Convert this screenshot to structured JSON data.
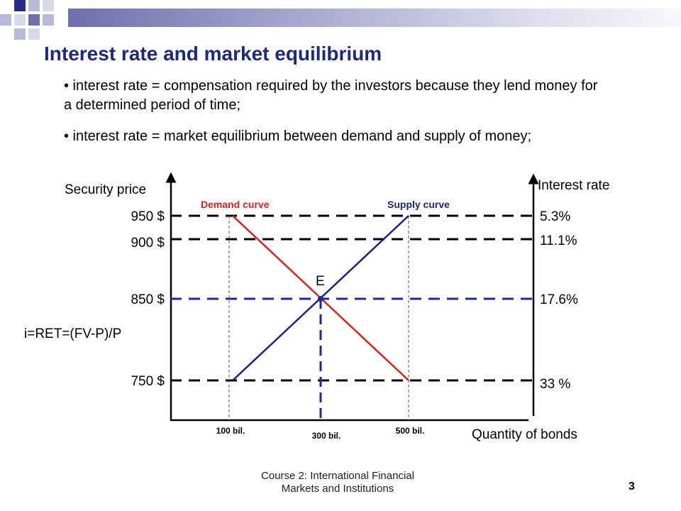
{
  "slide": {
    "title": "Interest rate and market equilibrium",
    "bullets": [
      "• interest rate = compensation required by the investors because they lend money for a determined period of time;",
      "• interest rate = market equilibrium between demand and supply of money;"
    ],
    "footer_line1": "Course 2: International Financial",
    "footer_line2": "Markets and Institutions",
    "page_number": "3"
  },
  "diagram": {
    "left_axis_label": "Security price",
    "right_axis_label": "Interest rate",
    "x_axis_label": "Quantity of bonds",
    "formula": "i=RET=(FV-P)/P",
    "equilibrium_label": "E",
    "demand_label": "Demand curve",
    "supply_label": "Supply curve",
    "prices": [
      "950 $",
      "900 $",
      "850 $",
      "750 $"
    ],
    "rates": [
      "5.3%",
      "11.1%",
      "17.6%",
      "33 %"
    ],
    "quantities": [
      "100 bil.",
      "300 bil.",
      "500 bil."
    ],
    "colors": {
      "title": "#1c2a7d",
      "demand": "#e0201c",
      "supply": "#1c1f84",
      "equilibrium_lines": "#1c2a9c",
      "dashed_lines": "#000000"
    }
  }
}
